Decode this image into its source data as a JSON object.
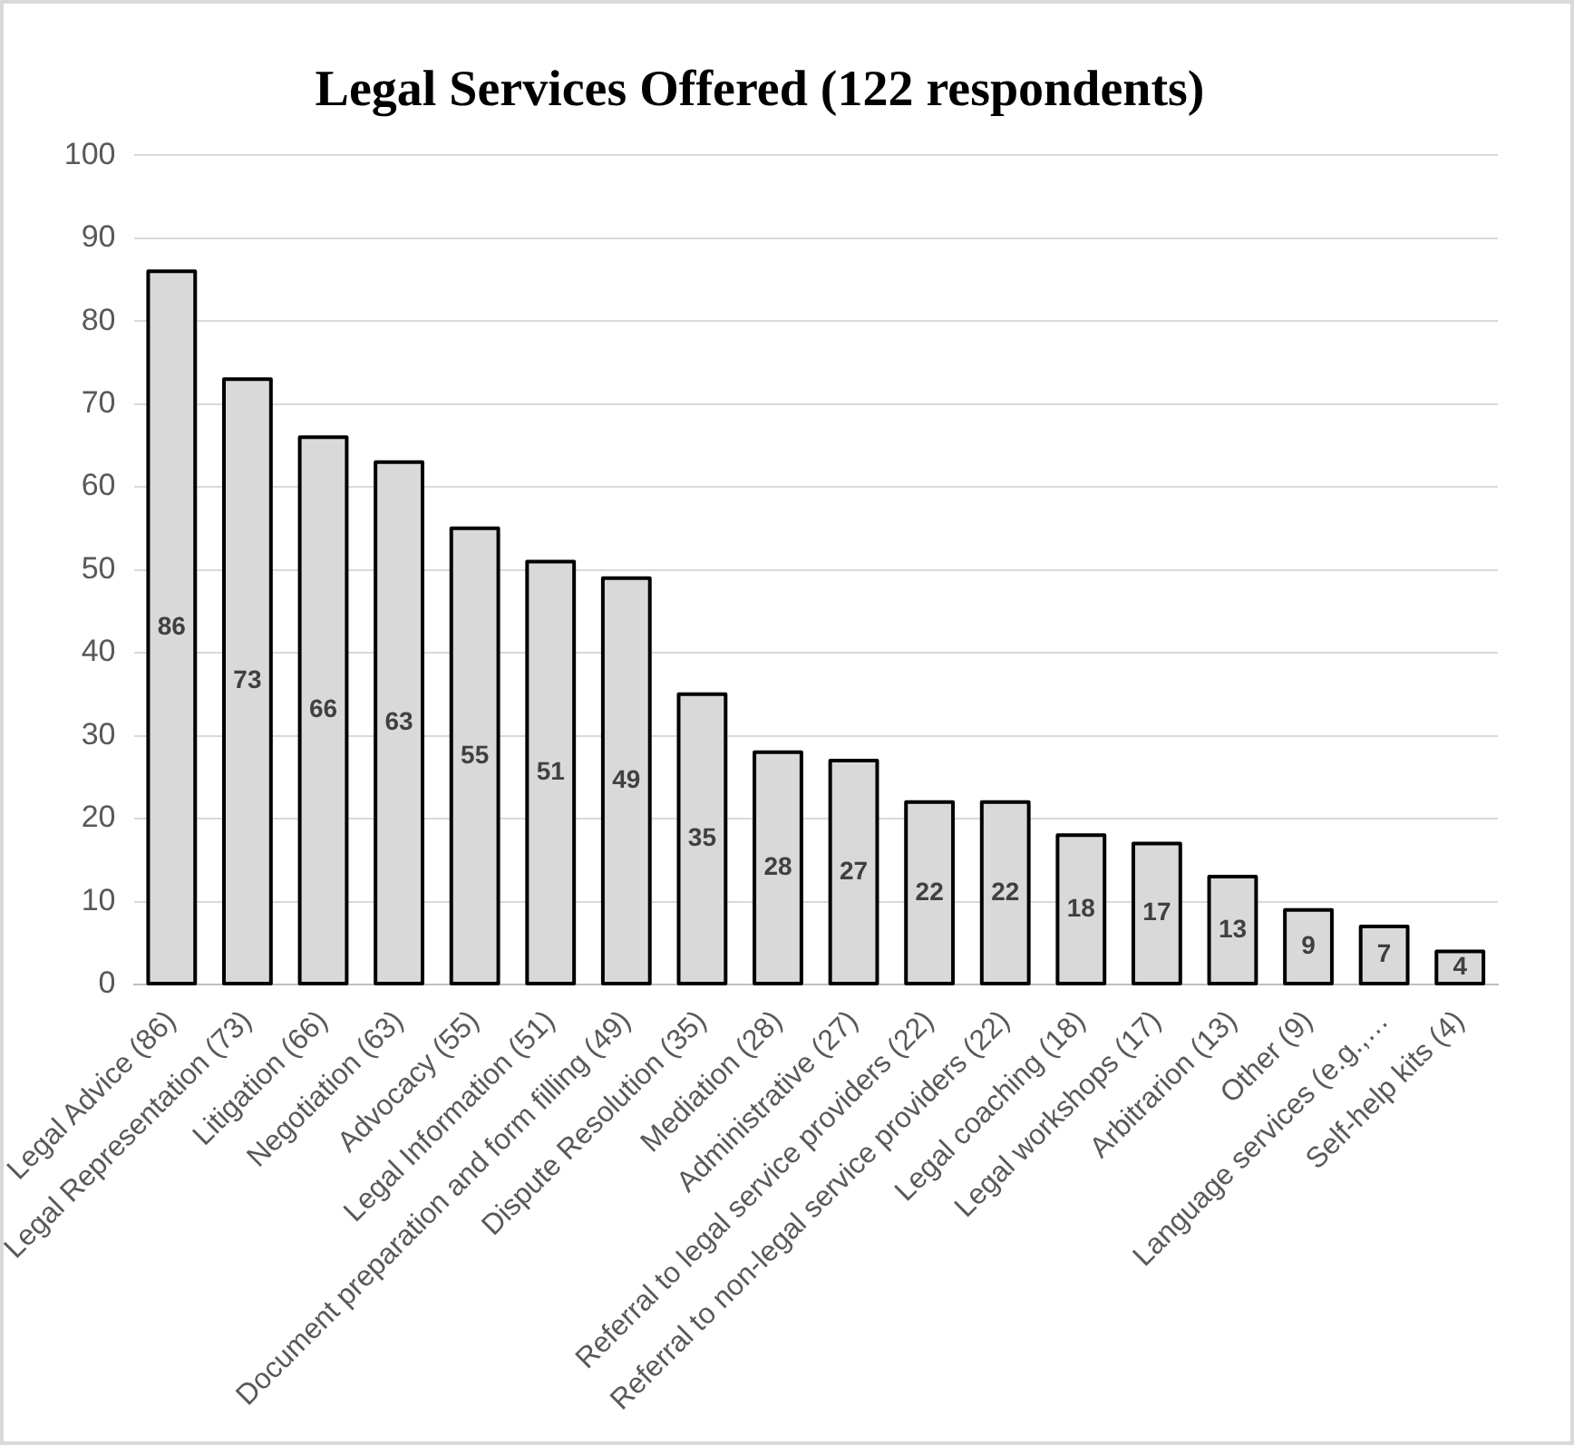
{
  "chart_data": {
    "type": "bar",
    "title": "Legal Services Offered (122 respondents)",
    "categories": [
      "Legal Advice (86)",
      "Legal Representation (73)",
      "Litigation (66)",
      "Negotiation (63)",
      "Advocacy (55)",
      "Legal Information (51)",
      "Document preparation and form filling (49)",
      "Dispute Resolution (35)",
      "Mediation (28)",
      "Administrative (27)",
      "Referral to legal service providers (22)",
      "Referral to non-legal service providers (22)",
      "Legal coaching (18)",
      "Legal workshops (17)",
      "Arbitrarion (13)",
      "Other (9)",
      "Language services (e.g.,…",
      "Self-help kits (4)"
    ],
    "values": [
      86,
      73,
      66,
      63,
      55,
      51,
      49,
      35,
      28,
      27,
      22,
      22,
      18,
      17,
      13,
      9,
      7,
      4
    ],
    "color": "#d9d9d9",
    "ylim": [
      0,
      100
    ],
    "yticks": [
      0,
      10,
      20,
      30,
      40,
      50,
      60,
      70,
      80,
      90,
      100
    ],
    "grid": "y",
    "data_labels": true,
    "legend": false
  }
}
